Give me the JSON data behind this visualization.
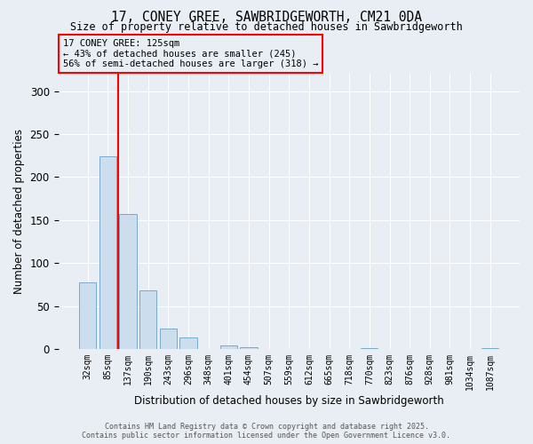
{
  "title_line1": "17, CONEY GREE, SAWBRIDGEWORTH, CM21 0DA",
  "title_line2": "Size of property relative to detached houses in Sawbridgeworth",
  "xlabel": "Distribution of detached houses by size in Sawbridgeworth",
  "ylabel": "Number of detached properties",
  "bar_color": "#ccdded",
  "bar_edge_color": "#7aaac8",
  "categories": [
    "32sqm",
    "85sqm",
    "137sqm",
    "190sqm",
    "243sqm",
    "296sqm",
    "348sqm",
    "401sqm",
    "454sqm",
    "507sqm",
    "559sqm",
    "612sqm",
    "665sqm",
    "718sqm",
    "770sqm",
    "823sqm",
    "876sqm",
    "928sqm",
    "981sqm",
    "1034sqm",
    "1087sqm"
  ],
  "values": [
    77,
    224,
    157,
    68,
    24,
    13,
    0,
    4,
    2,
    0,
    0,
    0,
    0,
    0,
    1,
    0,
    0,
    0,
    0,
    0,
    1
  ],
  "ylim": [
    0,
    320
  ],
  "yticks": [
    0,
    50,
    100,
    150,
    200,
    250,
    300
  ],
  "red_line_x": 1.5,
  "annotation_title": "17 CONEY GREE: 125sqm",
  "annotation_line1": "← 43% of detached houses are smaller (245)",
  "annotation_line2": "56% of semi-detached houses are larger (318) →",
  "footer_line1": "Contains HM Land Registry data © Crown copyright and database right 2025.",
  "footer_line2": "Contains public sector information licensed under the Open Government Licence v3.0.",
  "background_color": "#e8eef4",
  "plot_bg_color": "#e8eef4",
  "grid_color": "#ffffff"
}
